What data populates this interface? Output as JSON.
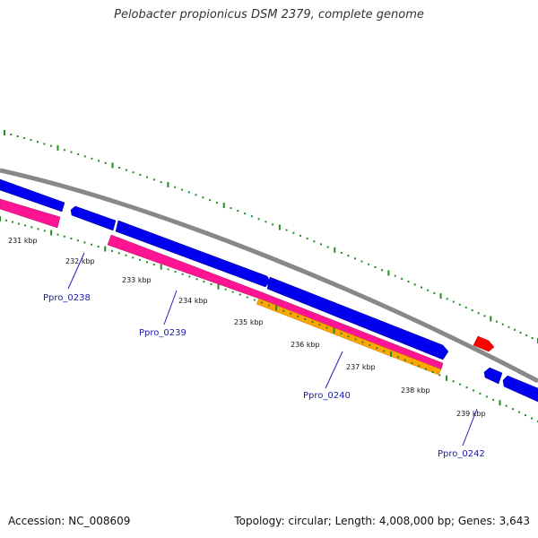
{
  "title": "Pelobacter propionicus DSM 2379, complete genome",
  "footer": {
    "accession": "Accession: NC_008609",
    "summary": "Topology: circular; Length: 4,008,000 bp; Genes: 3,643"
  },
  "kbp_labels": [
    "231 kbp",
    "232 kbp",
    "233 kbp",
    "234 kbp",
    "235 kbp",
    "236 kbp",
    "237 kbp",
    "238 kbp",
    "239 kbp"
  ],
  "genes": [
    {
      "name": "Ppro_0238"
    },
    {
      "name": "Ppro_0239"
    },
    {
      "name": "Ppro_0240"
    },
    {
      "name": "Ppro_0242"
    }
  ],
  "colors": {
    "backbone": "#888888",
    "forward_cds": "#0000ee",
    "reverse_cds": "#0000ee",
    "rrna": "#ff0000",
    "pink": "#ff1493",
    "orange": "#ffa500",
    "ticks": "#228b22",
    "label_line": "#2020c0"
  }
}
